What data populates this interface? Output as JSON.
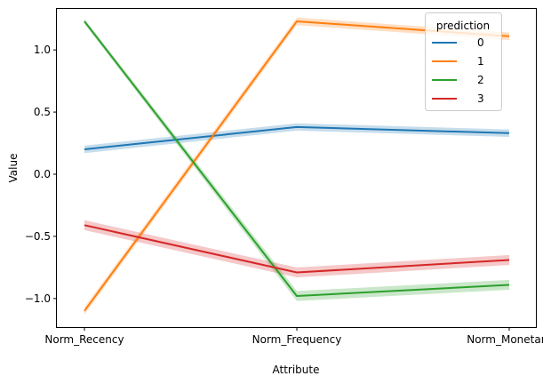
{
  "chart_data": {
    "type": "line",
    "xlabel": "Attribute",
    "ylabel": "Value",
    "categories": [
      "Norm_Recency",
      "Norm_Frequency",
      "Norm_Monetary"
    ],
    "ylim": [
      -1.23,
      1.33
    ],
    "yticks": [
      -1.0,
      -0.5,
      0.0,
      0.5,
      1.0
    ],
    "ytick_labels": [
      "−1.0",
      "−0.5",
      "0.0",
      "0.5",
      "1.0"
    ],
    "grid": false,
    "confidence_band": true,
    "legend": {
      "title": "prediction",
      "placement": "top-right"
    },
    "series": [
      {
        "name": "0",
        "color": "#1f77b4",
        "values": [
          0.2,
          0.38,
          0.33
        ],
        "ci": [
          0.03,
          0.03,
          0.03
        ]
      },
      {
        "name": "1",
        "color": "#ff7f0e",
        "values": [
          -1.1,
          1.23,
          1.11
        ],
        "ci": [
          0.03,
          0.03,
          0.03
        ]
      },
      {
        "name": "2",
        "color": "#2ca02c",
        "values": [
          1.23,
          -0.98,
          -0.89
        ],
        "ci": [
          0.02,
          0.04,
          0.04
        ]
      },
      {
        "name": "3",
        "color": "#d62728",
        "values": [
          -0.41,
          -0.79,
          -0.69
        ],
        "ci": [
          0.04,
          0.04,
          0.04
        ]
      }
    ]
  }
}
